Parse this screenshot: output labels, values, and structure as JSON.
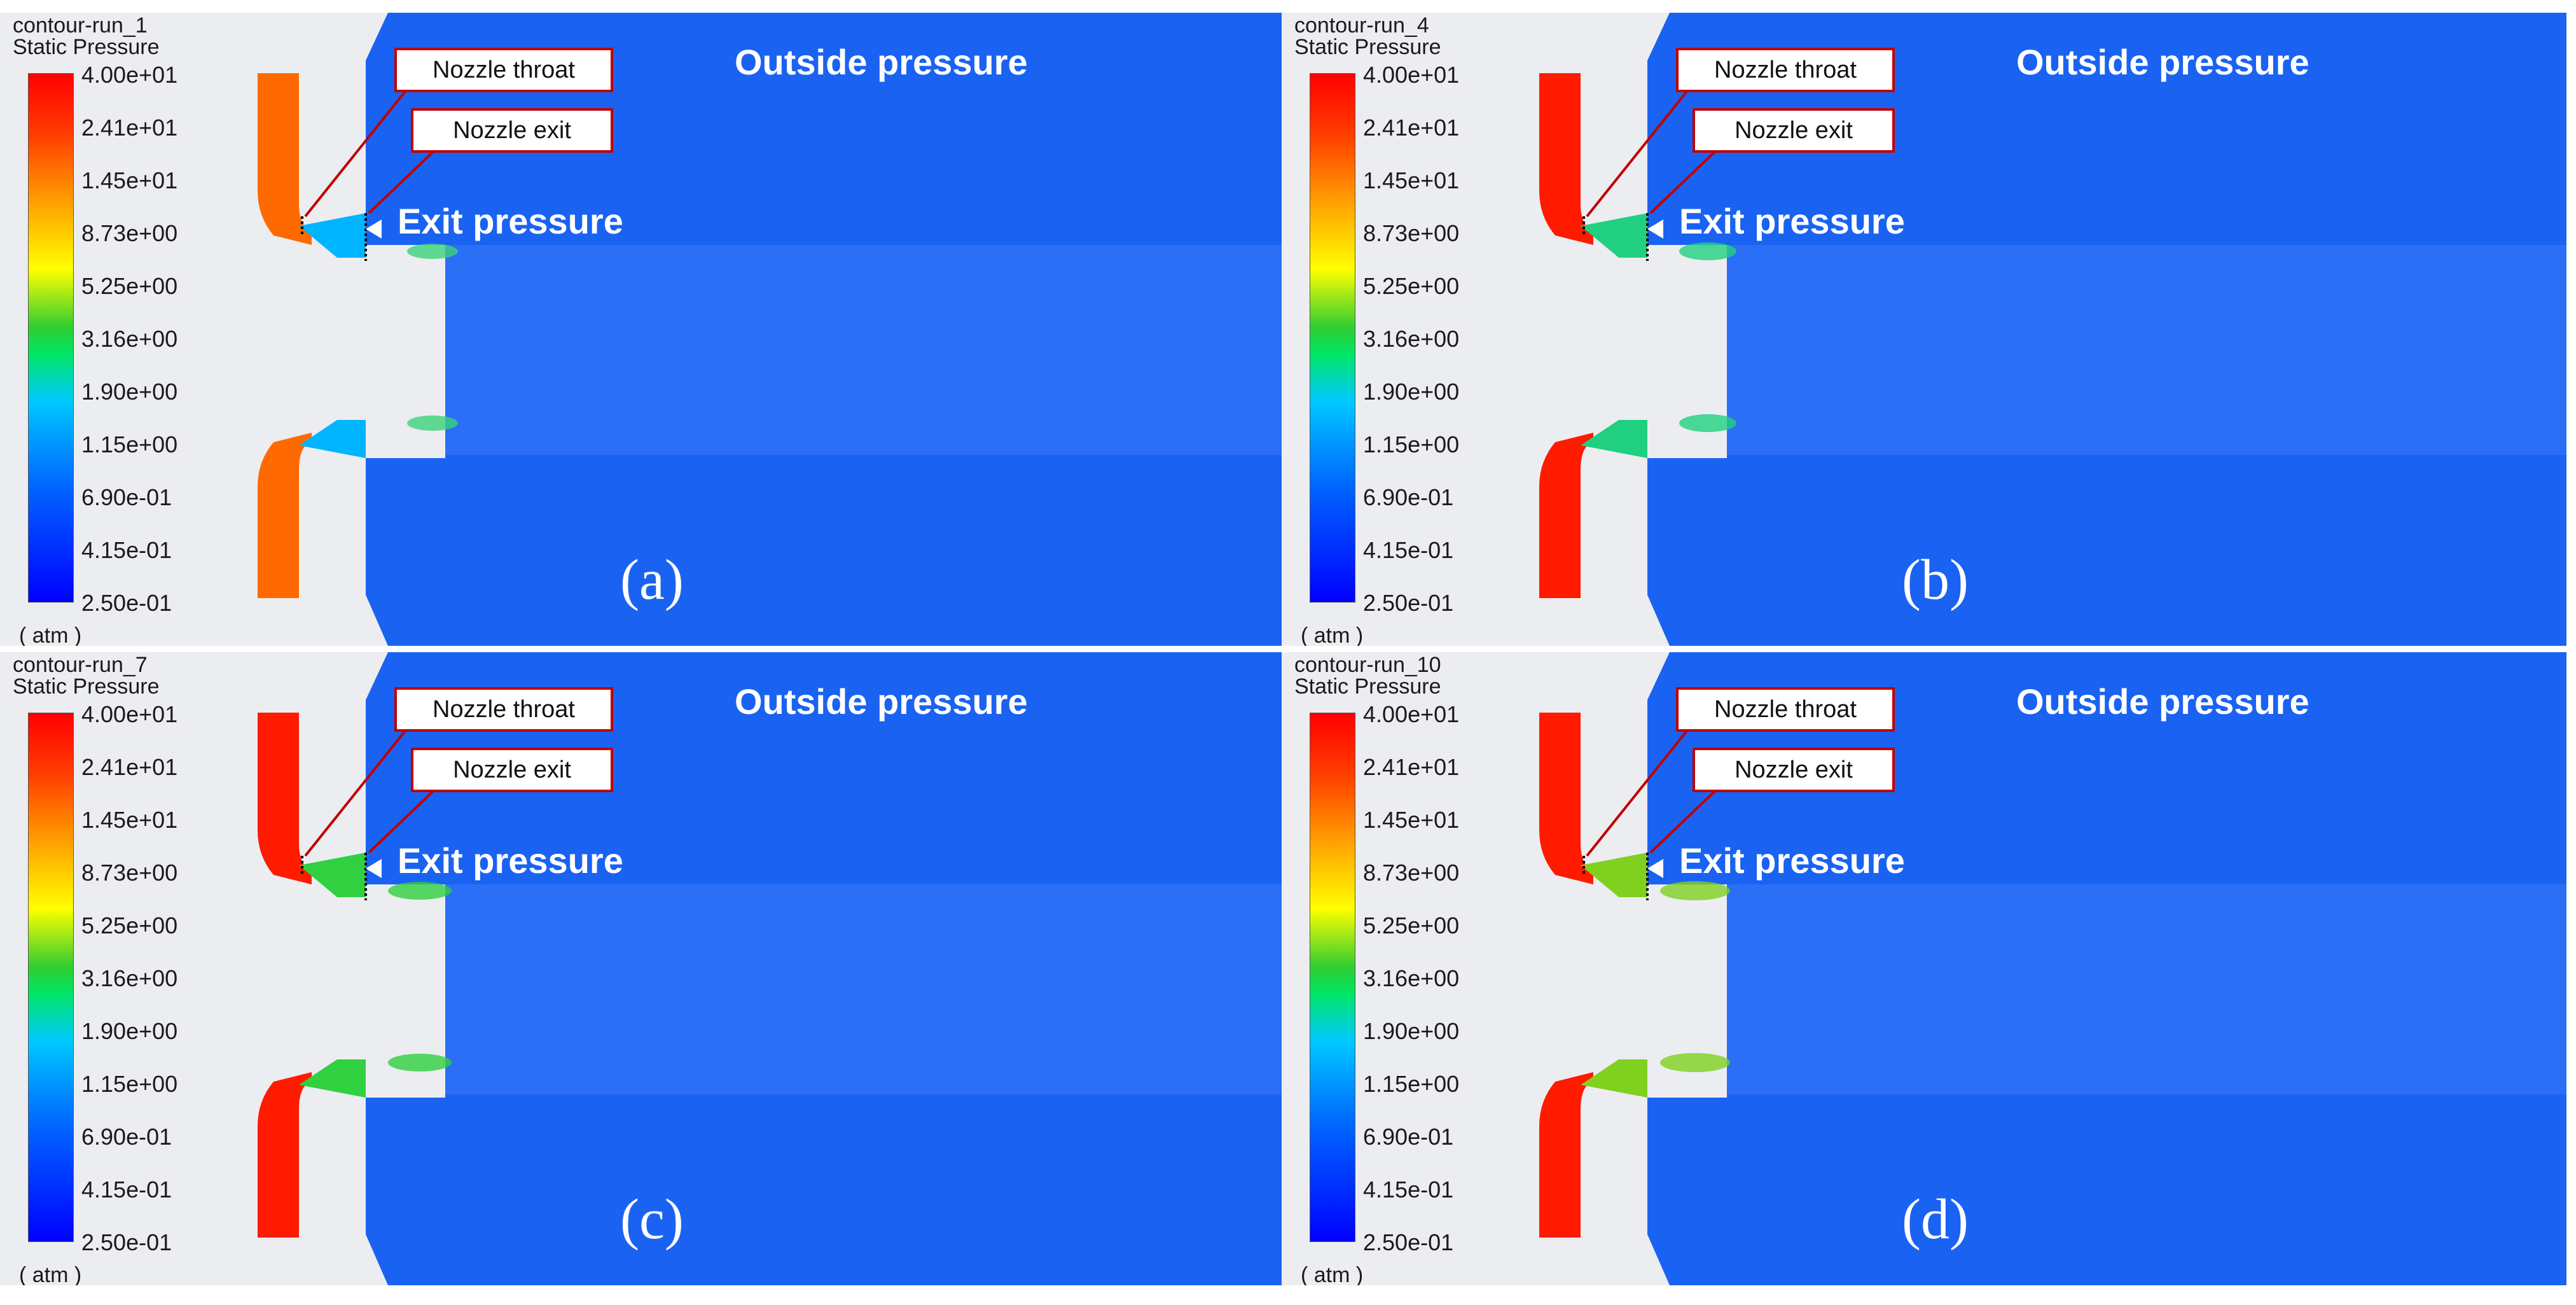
{
  "colors": {
    "outside_field": "#1a63f2",
    "chamber_fill_a": "#ff6a00",
    "chamber_fill_other": "#ff1a00",
    "wall_gray": "#d6dae2",
    "callout_border": "#c00000",
    "label_text": "#ffffff"
  },
  "colorbar": {
    "quantity": "Static Pressure",
    "unit": "( atm )",
    "ticks": [
      "4.00e+01",
      "2.41e+01",
      "1.45e+01",
      "8.73e+00",
      "5.25e+00",
      "3.16e+00",
      "1.90e+00",
      "1.15e+00",
      "6.90e-01",
      "4.15e-01",
      "2.50e-01"
    ]
  },
  "annotations": {
    "nozzle_throat": "Nozzle throat",
    "nozzle_exit": "Nozzle exit",
    "exit_pressure": "Exit pressure",
    "outside_pressure": "Outside pressure"
  },
  "panels": [
    {
      "run": "contour-run_1",
      "caption": "(a)"
    },
    {
      "run": "contour-run_4",
      "caption": "(b)"
    },
    {
      "run": "contour-run_7",
      "caption": "(c)"
    },
    {
      "run": "contour-run_10",
      "caption": "(d)"
    }
  ]
}
